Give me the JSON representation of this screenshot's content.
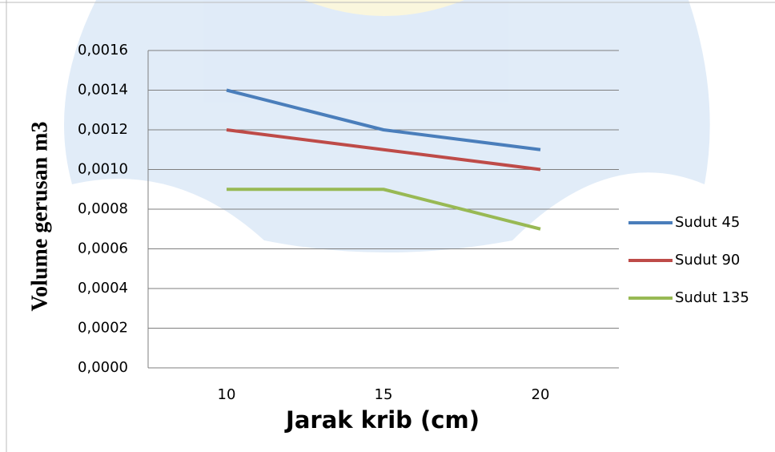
{
  "chart_data": {
    "type": "line",
    "y_label": "Volume gerusan m3",
    "x_label": "Jarak krib (cm)",
    "categories": [
      "10",
      "15",
      "20"
    ],
    "series": [
      {
        "name": "Sudut 45",
        "color": "#4a7ebb",
        "values": [
          0.0014,
          0.0012,
          0.0011
        ]
      },
      {
        "name": "Sudut 90",
        "color": "#be4b48",
        "values": [
          0.0012,
          0.0011,
          0.001
        ]
      },
      {
        "name": "Sudut 135",
        "color": "#98b954",
        "values": [
          0.0009,
          0.0009,
          0.0007
        ]
      }
    ],
    "ylim": [
      0,
      0.0016
    ],
    "yticks": [
      {
        "value": 0,
        "label": "0,0000"
      },
      {
        "value": 0.0002,
        "label": "0,0002"
      },
      {
        "value": 0.0004,
        "label": "0,0004"
      },
      {
        "value": 0.0006,
        "label": "0,0006"
      },
      {
        "value": 0.0008,
        "label": "0,0008"
      },
      {
        "value": 0.001,
        "label": "0,0010"
      },
      {
        "value": 0.0012,
        "label": "0,0012"
      },
      {
        "value": 0.0014,
        "label": "0,0014"
      },
      {
        "value": 0.0016,
        "label": "0,0016"
      }
    ],
    "grid": true,
    "legend": "right"
  }
}
